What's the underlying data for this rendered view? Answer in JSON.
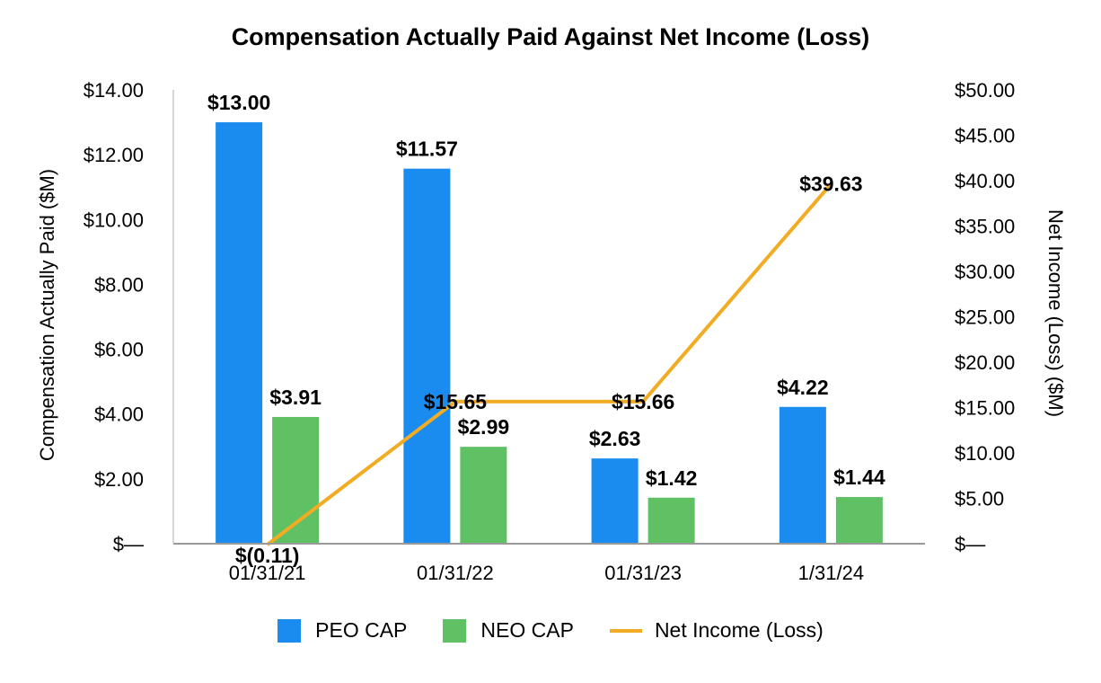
{
  "chart_data": {
    "type": "bar",
    "title": "Compensation Actually Paid Against Net Income (Loss)",
    "categories": [
      "01/31/21",
      "01/31/22",
      "01/31/23",
      "1/31/24"
    ],
    "ylabel": "Compensation Actually Paid ($M)",
    "y2label": "Net Income (Loss) ($M)",
    "ylim": [
      0,
      14
    ],
    "y2lim": [
      0,
      50
    ],
    "yticks": [
      {
        "value": 0,
        "label": "$—"
      },
      {
        "value": 2,
        "label": "$2.00"
      },
      {
        "value": 4,
        "label": "$4.00"
      },
      {
        "value": 6,
        "label": "$6.00"
      },
      {
        "value": 8,
        "label": "$8.00"
      },
      {
        "value": 10,
        "label": "$10.00"
      },
      {
        "value": 12,
        "label": "$12.00"
      },
      {
        "value": 14,
        "label": "$14.00"
      }
    ],
    "y2ticks": [
      {
        "value": 0,
        "label": "$—"
      },
      {
        "value": 5,
        "label": "$5.00"
      },
      {
        "value": 10,
        "label": "$10.00"
      },
      {
        "value": 15,
        "label": "$15.00"
      },
      {
        "value": 20,
        "label": "$20.00"
      },
      {
        "value": 25,
        "label": "$25.00"
      },
      {
        "value": 30,
        "label": "$30.00"
      },
      {
        "value": 35,
        "label": "$35.00"
      },
      {
        "value": 40,
        "label": "$40.00"
      },
      {
        "value": 45,
        "label": "$45.00"
      },
      {
        "value": 50,
        "label": "$50.00"
      }
    ],
    "series": [
      {
        "name": "PEO CAP",
        "type": "bar",
        "axis": "left",
        "color": "#1a8cf0",
        "values": [
          13.0,
          11.57,
          2.63,
          4.22
        ],
        "labels": [
          "$13.00",
          "$11.57",
          "$2.63",
          "$4.22"
        ]
      },
      {
        "name": "NEO CAP",
        "type": "bar",
        "axis": "left",
        "color": "#5fc163",
        "values": [
          3.91,
          2.99,
          1.42,
          1.44
        ],
        "labels": [
          "$3.91",
          "$2.99",
          "$1.42",
          "$1.44"
        ]
      },
      {
        "name": "Net Income (Loss)",
        "type": "line",
        "axis": "right",
        "color": "#f2ac24",
        "values": [
          -0.11,
          15.65,
          15.66,
          39.63
        ],
        "labels": [
          "$(0.11)",
          "$15.65",
          "$15.66",
          "$39.63"
        ]
      }
    ],
    "legend": "bottom",
    "grid": false
  }
}
